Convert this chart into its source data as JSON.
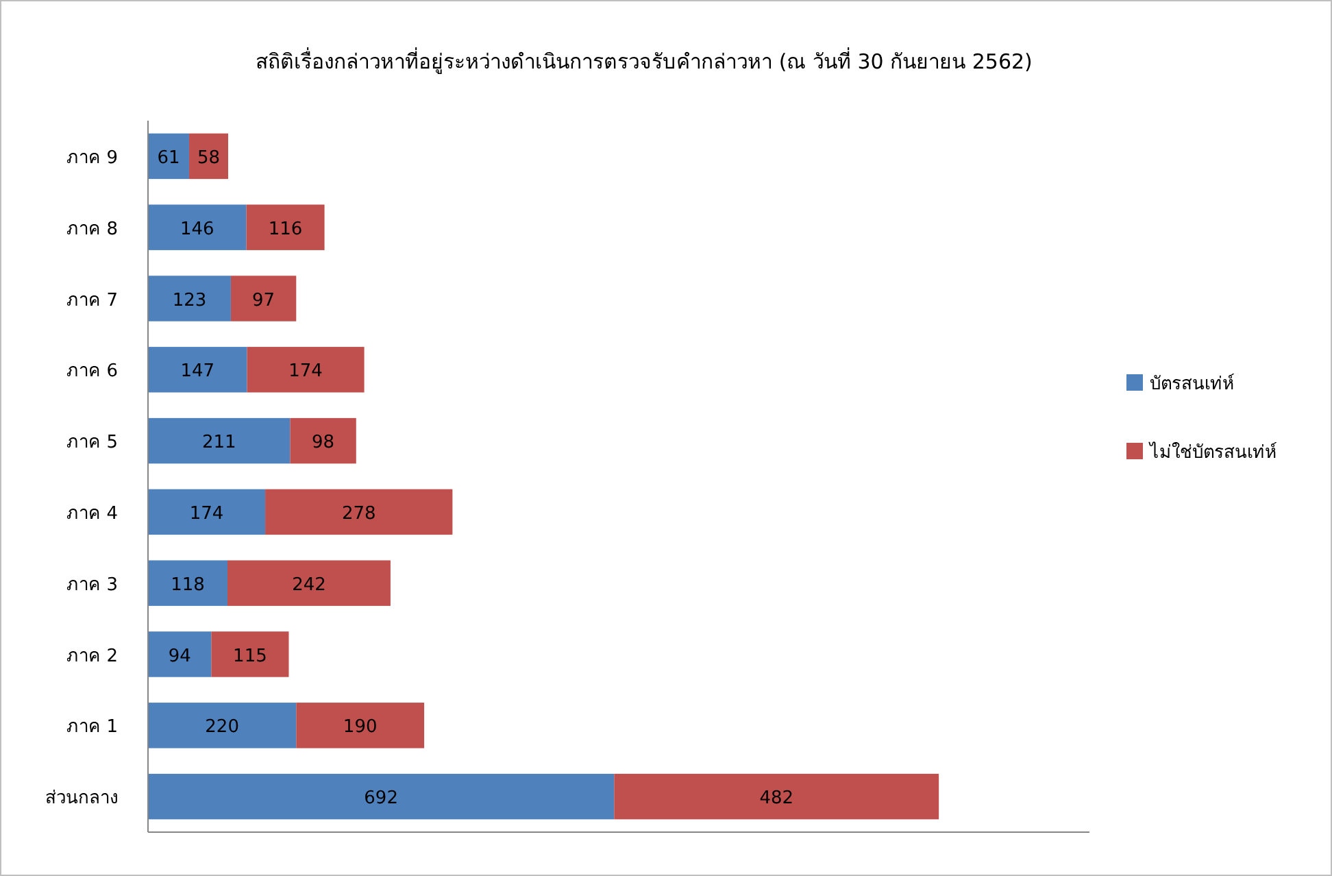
{
  "chart_data": {
    "type": "bar",
    "orientation": "horizontal",
    "stacked": true,
    "title": "สถิติเรื่องกล่าวหาที่อยู่ระหว่างดำเนินการตรวจรับคำกล่าวหา (ณ วันที่ 30 กันยายน 2562)",
    "categories": [
      "ภาค 9",
      "ภาค 8",
      "ภาค 7",
      "ภาค 6",
      "ภาค 5",
      "ภาค 4",
      "ภาค 3",
      "ภาค 2",
      "ภาค 1",
      "ส่วนกลาง"
    ],
    "series": [
      {
        "name": "บัตรสนเท่ห์",
        "color": "#4f81bd",
        "values": [
          61,
          146,
          123,
          147,
          211,
          174,
          118,
          94,
          220,
          692
        ]
      },
      {
        "name": "ไม่ใช่บัตรสนเท่ห์",
        "color": "#c0504d",
        "values": [
          58,
          116,
          97,
          174,
          98,
          278,
          242,
          115,
          190,
          482
        ]
      }
    ],
    "data_labels": true,
    "legend": "right"
  }
}
